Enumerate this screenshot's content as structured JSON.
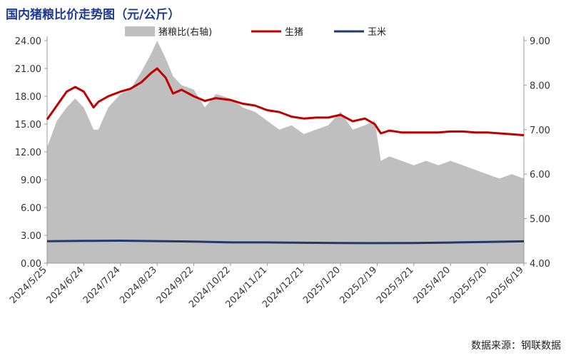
{
  "title": "国内猪粮比价走势图（元/公斤）",
  "source": "数据来源：钢联数据",
  "colors": {
    "ratio": "#bfbfbf",
    "hog": "#c00000",
    "corn": "#1f3a6e",
    "title": "#1f3a93"
  },
  "chart_data": {
    "type": "line",
    "title": "国内猪粮比价走势图（元/公斤）",
    "legend_position": "top",
    "grid": false,
    "y_left": {
      "lim": [
        0,
        24
      ],
      "ticks": [
        "0.00",
        "3.00",
        "6.00",
        "9.00",
        "12.00",
        "15.00",
        "18.00",
        "21.00",
        "24.00"
      ]
    },
    "y_right": {
      "lim": [
        4,
        9
      ],
      "ticks": [
        "4.00",
        "5.00",
        "6.00",
        "7.00",
        "8.00",
        "9.00"
      ]
    },
    "x_ticks": [
      "2024/5/25",
      "2024/6/24",
      "2024/7/24",
      "2024/8/23",
      "2024/9/22",
      "2024/10/22",
      "2024/11/21",
      "2024/12/21",
      "2025/1/20",
      "2025/2/19",
      "2025/3/21",
      "2025/4/20",
      "2025/5/20",
      "2025/6/19"
    ],
    "x_range": [
      "2024/5/25",
      "2025/6/19"
    ],
    "series": [
      {
        "name": "猪粮比(右轴)",
        "type": "area",
        "axis": "right",
        "x": [
          "2024/5/25",
          "2024/6/2",
          "2024/6/10",
          "2024/6/17",
          "2024/6/24",
          "2024/7/2",
          "2024/7/6",
          "2024/7/14",
          "2024/7/24",
          "2024/8/1",
          "2024/8/10",
          "2024/8/18",
          "2024/8/23",
          "2024/8/30",
          "2024/9/5",
          "2024/9/12",
          "2024/9/22",
          "2024/10/1",
          "2024/10/10",
          "2024/10/22",
          "2024/11/1",
          "2024/11/11",
          "2024/11/21",
          "2024/12/1",
          "2024/12/11",
          "2024/12/21",
          "2024/12/31",
          "2025/1/10",
          "2025/1/20",
          "2025/1/30",
          "2025/2/9",
          "2025/2/17",
          "2025/2/22",
          "2025/3/1",
          "2025/3/11",
          "2025/3/21",
          "2025/3/31",
          "2025/4/10",
          "2025/4/20",
          "2025/4/30",
          "2025/5/10",
          "2025/5/20",
          "2025/5/30",
          "2025/6/9",
          "2025/6/19"
        ],
        "values": [
          6.6,
          7.2,
          7.5,
          7.7,
          7.5,
          7.0,
          7.0,
          7.5,
          7.8,
          7.9,
          8.3,
          8.7,
          9.0,
          8.6,
          8.2,
          8.0,
          7.9,
          7.5,
          7.8,
          7.7,
          7.5,
          7.4,
          7.2,
          7.0,
          7.1,
          6.9,
          7.0,
          7.1,
          7.4,
          7.0,
          7.1,
          7.2,
          6.3,
          6.4,
          6.3,
          6.2,
          6.3,
          6.2,
          6.3,
          6.2,
          6.1,
          6.0,
          5.9,
          6.0,
          5.9
        ]
      },
      {
        "name": "生猪",
        "type": "line",
        "axis": "left",
        "x": [
          "2024/5/25",
          "2024/6/2",
          "2024/6/10",
          "2024/6/17",
          "2024/6/24",
          "2024/7/2",
          "2024/7/6",
          "2024/7/14",
          "2024/7/24",
          "2024/8/1",
          "2024/8/10",
          "2024/8/18",
          "2024/8/23",
          "2024/8/30",
          "2024/9/5",
          "2024/9/12",
          "2024/9/22",
          "2024/10/1",
          "2024/10/10",
          "2024/10/22",
          "2024/11/1",
          "2024/11/11",
          "2024/11/21",
          "2024/12/1",
          "2024/12/11",
          "2024/12/21",
          "2024/12/31",
          "2025/1/10",
          "2025/1/20",
          "2025/1/30",
          "2025/2/9",
          "2025/2/17",
          "2025/2/22",
          "2025/3/1",
          "2025/3/11",
          "2025/3/21",
          "2025/3/31",
          "2025/4/10",
          "2025/4/20",
          "2025/4/30",
          "2025/5/10",
          "2025/5/20",
          "2025/5/30",
          "2025/6/9",
          "2025/6/19"
        ],
        "values": [
          15.5,
          17.0,
          18.5,
          19.0,
          18.5,
          16.8,
          17.4,
          18.0,
          18.5,
          18.8,
          19.5,
          20.5,
          21.0,
          20.0,
          18.3,
          18.7,
          18.0,
          17.5,
          17.8,
          17.6,
          17.2,
          17.0,
          16.5,
          16.3,
          15.8,
          15.6,
          15.7,
          15.7,
          16.0,
          15.3,
          15.6,
          15.0,
          14.0,
          14.3,
          14.1,
          14.1,
          14.1,
          14.1,
          14.2,
          14.2,
          14.1,
          14.1,
          14.0,
          13.9,
          13.8
        ]
      },
      {
        "name": "玉米",
        "type": "line",
        "axis": "left",
        "x": [
          "2024/5/25",
          "2024/6/24",
          "2024/7/24",
          "2024/8/23",
          "2024/9/22",
          "2024/10/22",
          "2024/11/21",
          "2024/12/21",
          "2025/1/20",
          "2025/2/19",
          "2025/3/21",
          "2025/4/20",
          "2025/5/20",
          "2025/6/19"
        ],
        "values": [
          2.36,
          2.4,
          2.42,
          2.38,
          2.33,
          2.24,
          2.24,
          2.2,
          2.18,
          2.16,
          2.18,
          2.22,
          2.29,
          2.35
        ]
      }
    ]
  }
}
